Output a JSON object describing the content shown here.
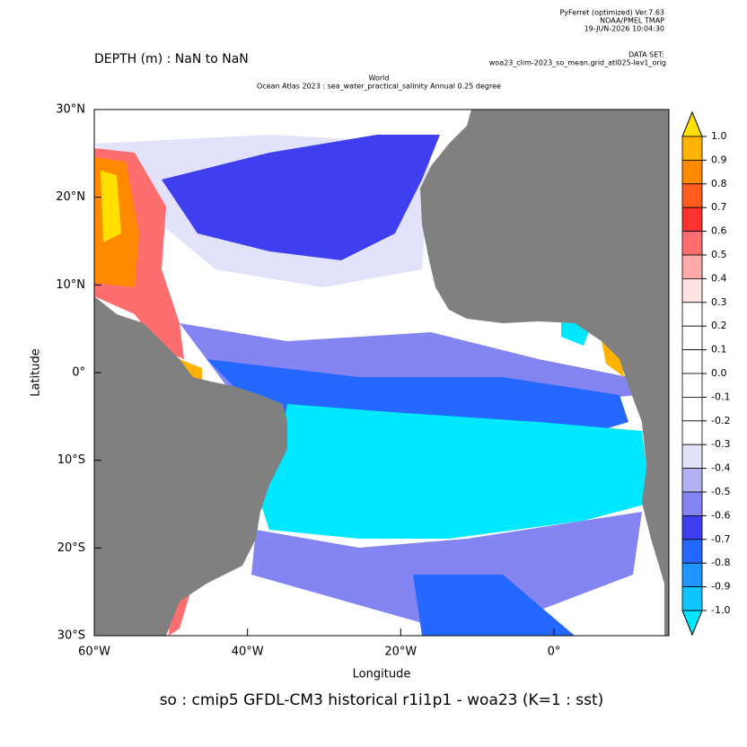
{
  "header": {
    "software": "PyFerret (optimized) Ver.7.63",
    "org": "NOAA/PMEL TMAP",
    "date": "19-JUN-2026 10:04:30",
    "dataset_label": "DATA SET:",
    "dataset": "woa23_clim-2023_so_mean.grid_atl025-lev1_orig"
  },
  "chart_data": {
    "type": "heatmap",
    "title": "DEPTH (m) : NaN to NaN",
    "subtitle": [
      "World",
      "Ocean Atlas 2023 : sea_water_practical_salinity Annual  0.25 degree"
    ],
    "xlabel": "Longitude",
    "ylabel": "Latitude",
    "caption": "so : cmip5 GFDL-CM3 historical r1i1p1 - woa23  (K=1 : sst)",
    "xlim": [
      -60,
      15
    ],
    "ylim": [
      -30,
      30
    ],
    "xticks": [
      {
        "value": -60,
        "label": "60°W"
      },
      {
        "value": -40,
        "label": "40°W"
      },
      {
        "value": -20,
        "label": "20°W"
      },
      {
        "value": 0,
        "label": "0°"
      }
    ],
    "yticks": [
      {
        "value": 30,
        "label": "30°N"
      },
      {
        "value": 20,
        "label": "20°N"
      },
      {
        "value": 10,
        "label": "10°N"
      },
      {
        "value": 0,
        "label": "0°"
      },
      {
        "value": -10,
        "label": "10°S"
      },
      {
        "value": -20,
        "label": "20°S"
      },
      {
        "value": -30,
        "label": "30°S"
      }
    ],
    "colorbar": {
      "levels": [
        {
          "value": 1,
          "label": "1.0"
        },
        0.9,
        0.8,
        0.7,
        0.6,
        0.5,
        0.4,
        0.3,
        0.2,
        0.1,
        {
          "value": 0,
          "label": "0.0"
        },
        -0.1,
        -0.2,
        -0.3,
        -0.4,
        -0.5,
        -0.6,
        -0.7,
        -0.8,
        -0.9,
        {
          "value": -1,
          "label": "-1.0"
        }
      ],
      "colors": [
        "#ffe000",
        "#ffb300",
        "#ff8a00",
        "#ff5c1e",
        "#ff3232",
        "#ff6e6e",
        "#ffaaaa",
        "#ffe2e2",
        "#ffffff",
        "#ffffff",
        "#ffffff",
        "#ffffff",
        "#ffffff",
        "#ffffff",
        "#e2e2fa",
        "#b2b2f2",
        "#8484f2",
        "#3f3ff0",
        "#2468ff",
        "#1e95ff",
        "#10c4ff",
        "#00e8ff"
      ]
    }
  }
}
